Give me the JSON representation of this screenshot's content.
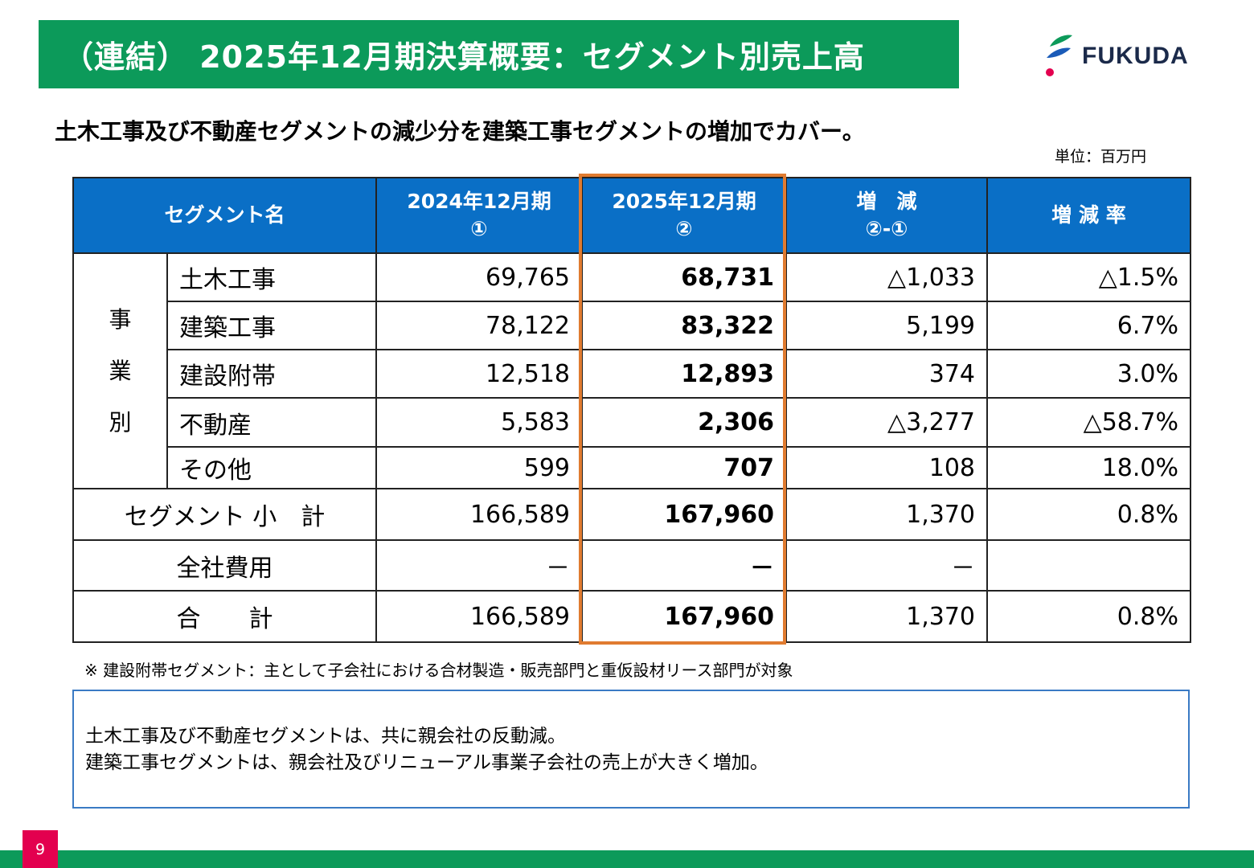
{
  "title": "（連結） 2025年12月期決算概要：セグメント別売上高",
  "logo": {
    "text": "FUKUDA"
  },
  "headline": "土木工事及び不動産セグメントの減少分を建築工事セグメントの増加でカバー。",
  "unit": "単位：百万円",
  "table": {
    "headers": {
      "segment": "セグメント名",
      "fy2024_line1": "2024年12月期",
      "fy2024_line2": "①",
      "fy2025_line1": "2025年12月期",
      "fy2025_line2": "②",
      "change_line1": "増　減",
      "change_line2": "②-①",
      "rate": "増 減 率"
    },
    "group_label": [
      "事",
      "業",
      "別"
    ],
    "rows": [
      {
        "name": "土木工事",
        "fy2024": "69,765",
        "fy2025": "68,731",
        "change": "△1,033",
        "rate": "△1.5%"
      },
      {
        "name": "建築工事",
        "fy2024": "78,122",
        "fy2025": "83,322",
        "change": "5,199",
        "rate": "6.7%"
      },
      {
        "name": "建設附帯",
        "fy2024": "12,518",
        "fy2025": "12,893",
        "change": "374",
        "rate": "3.0%"
      },
      {
        "name": "不動産",
        "fy2024": "5,583",
        "fy2025": "2,306",
        "change": "△3,277",
        "rate": "△58.7%"
      },
      {
        "name": "その他",
        "fy2024": "599",
        "fy2025": "707",
        "change": "108",
        "rate": "18.0%"
      }
    ],
    "subtotal": {
      "name": "セグメント 小　計",
      "fy2024": "166,589",
      "fy2025": "167,960",
      "change": "1,370",
      "rate": "0.8%"
    },
    "corporate": {
      "name": "全社費用",
      "fy2024": "－",
      "fy2025": "－",
      "change": "－",
      "rate": ""
    },
    "total": {
      "name": "合　　計",
      "fy2024": "166,589",
      "fy2025": "167,960",
      "change": "1,370",
      "rate": "0.8%"
    }
  },
  "note": "※ 建設附帯セグメント：主として子会社における合材製造・販売部門と重仮設材リース部門が対象",
  "summary": {
    "line1": "土木工事及び不動産セグメントは、共に親会社の反動減。",
    "line2": "建築工事セグメントは、親会社及びリニューアル事業子会社の売上が大きく増加。"
  },
  "page_number": "9",
  "colors": {
    "green": "#0c9a5a",
    "blue_header": "#0a6fc6",
    "highlight": "#e07b30",
    "page_badge": "#e3004f"
  }
}
